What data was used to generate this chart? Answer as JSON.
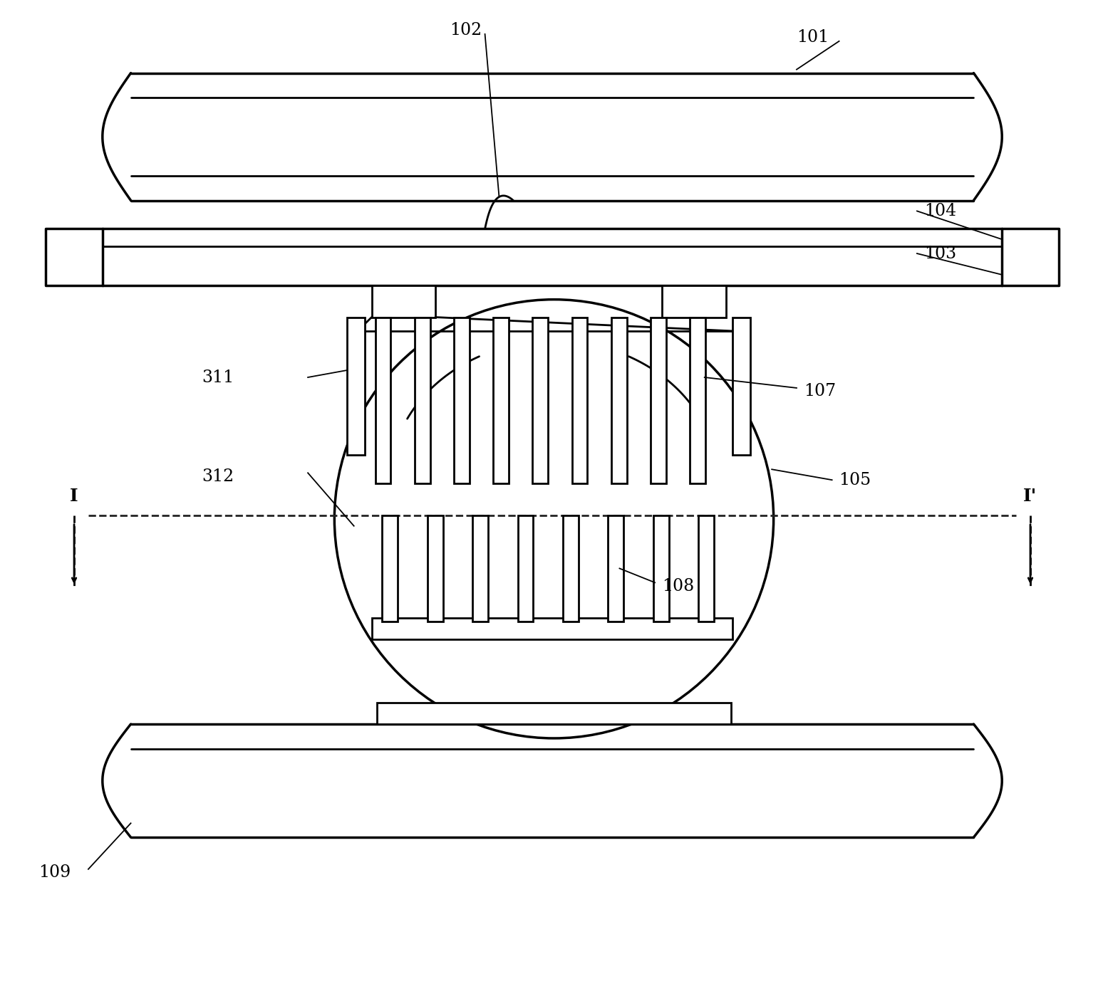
{
  "bg_color": "#ffffff",
  "line_color": "#000000",
  "lw": 2.0,
  "tlw": 2.5,
  "fig_width": 15.55,
  "fig_height": 13.99
}
